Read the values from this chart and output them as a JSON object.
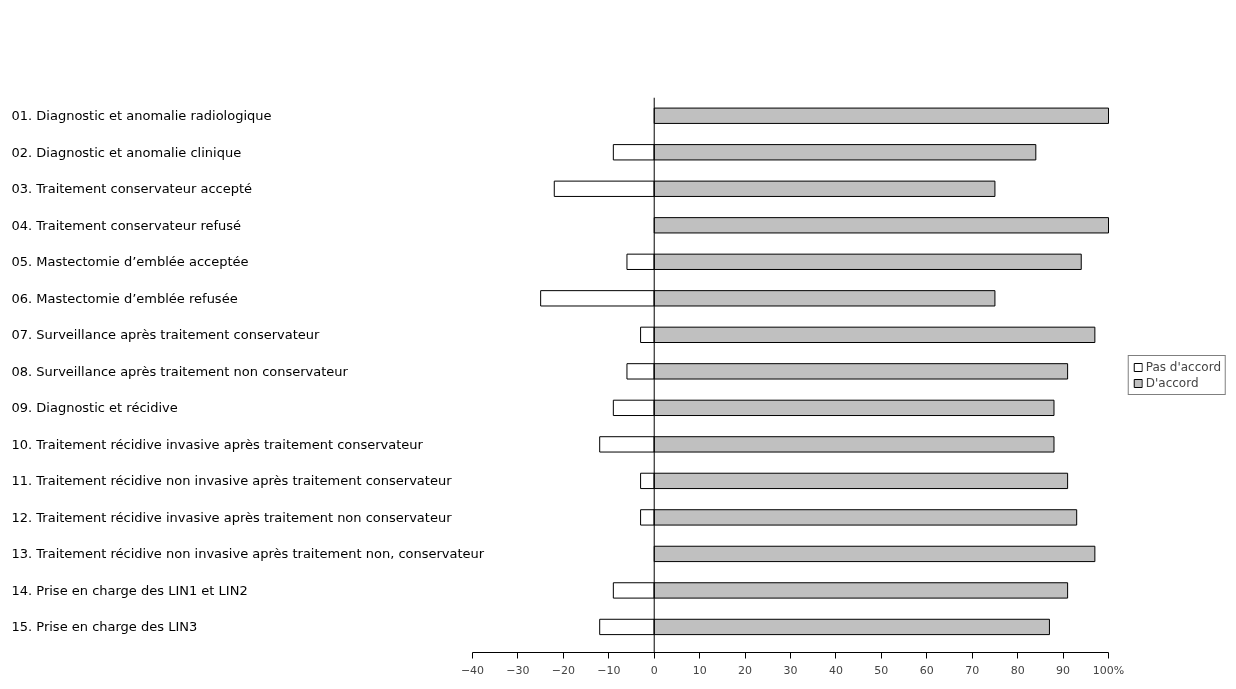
{
  "chart_data": {
    "type": "bar",
    "orientation": "horizontal",
    "categories": [
      "01. Diagnostic et anomalie radiologique",
      "02. Diagnostic et anomalie clinique",
      "03. Traitement conservateur accepté",
      "04. Traitement conservateur refusé",
      "05. Mastectomie d’emblée acceptée",
      "06. Mastectomie d’emblée refusée",
      "07. Surveillance après traitement conservateur",
      "08. Surveillance après traitement non conservateur",
      "09. Diagnostic et récidive",
      "10. Traitement récidive invasive après traitement conservateur",
      "11. Traitement récidive non invasive après traitement conservateur",
      "12. Traitement récidive invasive après traitement non conservateur",
      "13. Traitement récidive non invasive après traitement non, conservateur",
      "14. Prise en charge des LIN1 et LIN2",
      "15. Prise en charge des LIN3"
    ],
    "series": [
      {
        "name": "Pas d'accord",
        "color": "#ffffff",
        "values": [
          null,
          -9,
          -22,
          null,
          -6,
          -25,
          -3,
          -6,
          -9,
          -12,
          -3,
          -3,
          null,
          -9,
          -12
        ]
      },
      {
        "name": "D'accord",
        "color": "#c0c0c0",
        "values": [
          100,
          84,
          75,
          100,
          94,
          75,
          97,
          91,
          88,
          88,
          91,
          93,
          97,
          91,
          87
        ]
      }
    ],
    "xlim": [
      -40,
      100
    ],
    "xticks": [
      -40,
      -30,
      -20,
      -10,
      0,
      10,
      20,
      30,
      40,
      50,
      60,
      70,
      80,
      90,
      {
        "value": 100,
        "label": "100%"
      }
    ],
    "ref_lines": [
      {
        "axis": "x",
        "value": 0,
        "color": "#000000"
      }
    ],
    "stacked": true,
    "legend": "right"
  }
}
